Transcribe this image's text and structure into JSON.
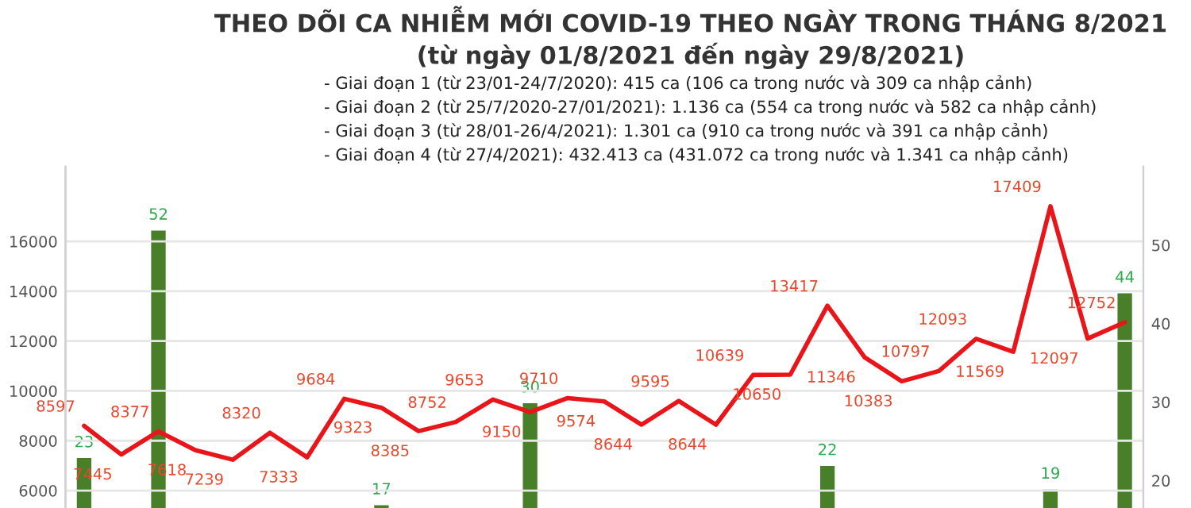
{
  "chart_data": {
    "type": "line",
    "title": "THEO DÕI CA NHIỄM MỚI COVID-19 THEO NGÀY TRONG THÁNG 8/2021",
    "subtitle": "(từ ngày 01/8/2021 đến ngày 29/8/2021)",
    "annotations": [
      "- Giai đoạn 1 (từ 23/01-24/7/2020): 415 ca (106 ca trong nước và 309 ca nhập cảnh)",
      "- Giai đoạn 2 (từ 25/7/2020-27/01/2021): 1.136 ca (554 ca trong nước và 582 ca nhập cảnh)",
      "- Giai đoạn 3 (từ 28/01-26/4/2021): 1.301 ca (910 ca trong nước và 391 ca nhập cảnh)",
      "- Giai đoạn 4 (từ 27/4/2021): 432.413 ca (431.072 ca trong nước và 1.341 ca nhập cảnh)"
    ],
    "categories": [
      null,
      null,
      null,
      null,
      null,
      null,
      null,
      null,
      null,
      null,
      null,
      null,
      null,
      null,
      null,
      null,
      null,
      null,
      null,
      null,
      null,
      null,
      null,
      null,
      null,
      null,
      null,
      null,
      null
    ],
    "series": [
      {
        "type": "bar",
        "axis": "y2",
        "color": "#4a7f2a",
        "values": [
          23,
          null,
          52,
          null,
          null,
          null,
          null,
          null,
          17,
          null,
          null,
          null,
          30,
          null,
          null,
          null,
          null,
          null,
          null,
          null,
          22,
          null,
          null,
          null,
          null,
          null,
          19,
          null,
          44
        ]
      },
      {
        "color": "#e8161b",
        "values": [
          8597,
          7445,
          8377,
          7618,
          7239,
          8320,
          7333,
          9684,
          9323,
          8385,
          8752,
          9653,
          9150,
          9710,
          9574,
          8644,
          9595,
          8644,
          10639,
          10650,
          13417,
          11346,
          10383,
          10797,
          12093,
          11569,
          17409,
          12097,
          12752
        ]
      }
    ],
    "ylim": [
      5300,
      19000
    ],
    "yticks": [
      6000,
      8000,
      10000,
      12000,
      14000,
      16000
    ],
    "y2lim": [
      16.5,
      60
    ],
    "y2ticks": [
      20,
      30,
      40,
      50
    ],
    "grid": "y",
    "data_labels": true,
    "legend": false,
    "tick_labels": "y"
  }
}
